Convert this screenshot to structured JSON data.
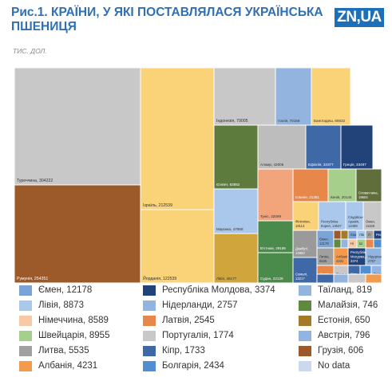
{
  "header": {
    "title_line1": "Рис.1. КРАЇНИ, У ЯКІ ПОСТАВЛЯЛАСЯ УКРАЇНСЬКА",
    "title_line2": "ПШЕНИЦЯ",
    "subtitle": "ТИС. ДОЛ.",
    "logo": "ZN,UA"
  },
  "chart_data": {
    "type": "treemap",
    "unit": "ТИС. ДОЛ.",
    "cells": [
      {
        "label": "Туреччина, 304222",
        "country": "Туреччина",
        "value": 304222,
        "color": "#c8c8c8"
      },
      {
        "label": "Румунія, 254351",
        "country": "Румунія",
        "value": 254351,
        "color": "#9c5a2a"
      },
      {
        "label": "Ізраїль, 212539",
        "country": "Ізраїль",
        "value": 212539,
        "color": "#fad277"
      },
      {
        "label": "Йорданія, 122539",
        "country": "Йорданія",
        "value": 122539,
        "color": "#fad277"
      },
      {
        "label": "Індонезія, 79005",
        "country": "Індонезія",
        "value": 79005,
        "color": "#c8c8c8"
      },
      {
        "label": "Італія, 70158",
        "country": "Італія",
        "value": 70158,
        "color": "#92b4de"
      },
      {
        "label": "Бангладеш, 66632",
        "country": "Бангладеш",
        "value": 66632,
        "color": "#fad277"
      },
      {
        "label": "Єгипет, 63852",
        "country": "Єгипет",
        "value": 63852,
        "color": "#5d7b3d"
      },
      {
        "label": "Марокко, 47868",
        "country": "Марокко",
        "value": 47868,
        "color": "#a9c8ec"
      },
      {
        "label": "Лівія, 46177",
        "country": "Лівія",
        "value": 46177,
        "color": "#d0a63c"
      },
      {
        "label": "Алжир, 42005",
        "country": "Алжир",
        "value": 42005,
        "color": "#bdbdbd"
      },
      {
        "label": "Ефіопія, 34377",
        "country": "Ефіопія",
        "value": 34377,
        "color": "#3e68a6"
      },
      {
        "label": "Греція, 33497",
        "country": "Греція",
        "value": 33497,
        "color": "#22427a"
      },
      {
        "label": "Туніс, 32099",
        "country": "Туніс",
        "value": 32099,
        "color": "#f2a47a"
      },
      {
        "label": "В'єтнам, 29185",
        "country": "В'єтнам",
        "value": 29185,
        "color": "#4a8a4a"
      },
      {
        "label": "Судан, 22129",
        "country": "Судан",
        "value": 22129,
        "color": "#4a8a4a"
      },
      {
        "label": "Іспанія, 21361",
        "country": "Іспанія",
        "value": 21361,
        "color": "#e8874a"
      },
      {
        "label": "Кенія, 20144",
        "country": "Кенія",
        "value": 20144,
        "color": "#a7cf8c"
      },
      {
        "label": "Словаччина, 19504",
        "country": "Словаччина",
        "value": 19504,
        "color": "#5f6e3a"
      },
      {
        "label": "Філіппіни, 18113",
        "country": "Філіппіни",
        "value": 18113,
        "color": "#fad277"
      },
      {
        "label": "Республіка Корея, 13537",
        "country": "Республіка Корея",
        "value": 13537,
        "color": "#a9c8ec"
      },
      {
        "label": "Саудівська Аравія, 12489",
        "country": "Саудівська Аравія",
        "value": 12489,
        "color": "#a9c8ec"
      },
      {
        "label": "Оман, 11169",
        "country": "Оман",
        "value": 11169,
        "color": "#c8c8c8"
      },
      {
        "label": "Джибуті, 14893",
        "country": "Джибуті",
        "value": 14893,
        "color": "#9a9a9a"
      },
      {
        "label": "Сомалі, 13217",
        "country": "Сомалі",
        "value": 13217,
        "color": "#3e68a6"
      },
      {
        "label": "Ємен, 12178",
        "country": "Ємен",
        "value": 12178,
        "color": "#7aa4d6"
      },
      {
        "label": "Лівія, 8873",
        "country": "Лівія",
        "value": 8873,
        "color": "#a9c8ec"
      },
      {
        "label": "Німеччина, 8589",
        "country": "Німеччина",
        "value": 8589,
        "color": "#f8c9a6"
      },
      {
        "label": "Швейцарія, 8955",
        "country": "Швейцарія",
        "value": 8955,
        "color": "#a7cf8c"
      },
      {
        "label": "Литва, 5535",
        "country": "Литва",
        "value": 5535,
        "color": "#a0a0a0"
      },
      {
        "label": "Албанія, 4231",
        "country": "Албанія",
        "value": 4231,
        "color": "#f49a4c"
      },
      {
        "label": "Республіка Молдова, 3374",
        "country": "Республіка Молдова",
        "value": 3374,
        "color": "#22427a"
      },
      {
        "label": "Нідерланди, 2757",
        "country": "Нідерланди",
        "value": 2757,
        "color": "#92b4de"
      },
      {
        "label": "Латвія, 2545",
        "country": "Латвія",
        "value": 2545,
        "color": "#e8874a"
      },
      {
        "label": "Португалія, 1774",
        "country": "Португалія",
        "value": 1774,
        "color": "#c8c8c8"
      },
      {
        "label": "Кіпр, 1733",
        "country": "Кіпр",
        "value": 1733,
        "color": "#3e68a6"
      },
      {
        "label": "Болгарія, 2434",
        "country": "Болгарія",
        "value": 2434,
        "color": "#4f8fd0"
      },
      {
        "label": "Таїланд, 819",
        "country": "Таїланд",
        "value": 819,
        "color": "#92b4de"
      },
      {
        "label": "Малайзія, 746",
        "country": "Малайзія",
        "value": 746,
        "color": "#5d8a3c"
      },
      {
        "label": "Естонія, 650",
        "country": "Естонія",
        "value": 650,
        "color": "#a47a2a"
      },
      {
        "label": "Австрія, 796",
        "country": "Австрія",
        "value": 796,
        "color": "#92b4de"
      },
      {
        "label": "Грузія, 606",
        "country": "Грузія",
        "value": 606,
        "color": "#9c5a2a"
      },
      {
        "label": "Ємен",
        "country": "Ємен",
        "value": null,
        "color": "#7aa4d6"
      },
      {
        "label": "Лів",
        "country": "Лів",
        "value": null,
        "color": "#a9c8ec"
      },
      {
        "label": "Ні",
        "country": "Ні",
        "value": null,
        "color": "#f8c9a6"
      },
      {
        "label": "Ш",
        "country": "Ш",
        "value": null,
        "color": "#a7cf8c"
      },
      {
        "label": "Л",
        "country": "Л",
        "value": null,
        "color": "#a0a0a0"
      },
      {
        "label": "Рес",
        "country": "Рес",
        "value": null,
        "color": "#22427a"
      },
      {
        "label": "",
        "country": "",
        "value": null,
        "color": "#e8874a"
      },
      {
        "label": "",
        "country": "",
        "value": null,
        "color": "#4f8fd0"
      },
      {
        "label": "",
        "country": "",
        "value": null,
        "color": "#3e68a6"
      },
      {
        "label": "",
        "country": "",
        "value": null,
        "color": "#92b4de"
      },
      {
        "label": "",
        "country": "",
        "value": null,
        "color": "#c8c8c8"
      },
      {
        "label": "",
        "country": "",
        "value": null,
        "color": "#f49a4c"
      },
      {
        "label": "",
        "country": "",
        "value": null,
        "color": "#9c5a2a"
      },
      {
        "label": "",
        "country": "",
        "value": null,
        "color": "#a47a2a"
      },
      {
        "label": "",
        "country": "",
        "value": null,
        "color": "#5d8a3c"
      },
      {
        "label": "",
        "country": "",
        "value": null,
        "color": "#92b4de"
      }
    ],
    "legend": [
      {
        "label": "Ємен, 12178",
        "color": "#7aa4d6"
      },
      {
        "label": "Лівія, 8873",
        "color": "#a9c8ec"
      },
      {
        "label": "Німеччина, 8589",
        "color": "#f8c9a6"
      },
      {
        "label": "Швейцарія, 8955",
        "color": "#a7cf8c"
      },
      {
        "label": "Литва, 5535",
        "color": "#a0a0a0"
      },
      {
        "label": "Албанія, 4231",
        "color": "#f49a4c"
      },
      {
        "label": "Республіка Молдова, 3374",
        "color": "#22427a"
      },
      {
        "label": "Нідерланди, 2757",
        "color": "#92b4de"
      },
      {
        "label": "Латвія, 2545",
        "color": "#e8874a"
      },
      {
        "label": "Португалія, 1774",
        "color": "#c8c8c8"
      },
      {
        "label": "Кіпр, 1733",
        "color": "#3e68a6"
      },
      {
        "label": "Болгарія, 2434",
        "color": "#4f8fd0"
      },
      {
        "label": "Таїланд, 819",
        "color": "#92b4de"
      },
      {
        "label": "Малайзія, 746",
        "color": "#5d8a3c"
      },
      {
        "label": "Естонія, 650",
        "color": "#a47a2a"
      },
      {
        "label": "Австрія, 796",
        "color": "#92b4de"
      },
      {
        "label": "Грузія, 606",
        "color": "#9c5a2a"
      },
      {
        "label": "No data",
        "color": "#c9daf0"
      }
    ]
  }
}
